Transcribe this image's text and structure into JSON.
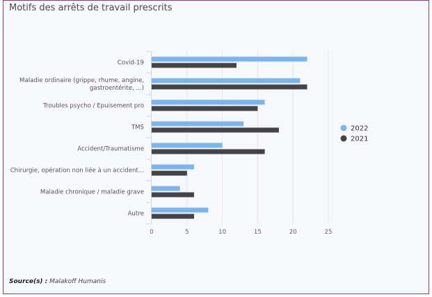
{
  "page": {
    "title": "Motifs des arrêts de travail prescrits",
    "source_label": "Source(s) :",
    "source_value": "Malakoff Humanis"
  },
  "colors": {
    "frame_border": "#8a3b6c",
    "background": "#f7f8fb",
    "series_2022": "#7cb5ec",
    "series_2021": "#434348",
    "grid": "#e6e6e6"
  },
  "chart_data": {
    "type": "bar",
    "orientation": "horizontal",
    "title": "Motifs des arrêts de travail prescrits",
    "xlabel": "",
    "ylabel": "",
    "categories": [
      [
        "Covid-19"
      ],
      [
        "Maladie ordinaire (grippe, rhume, angine,",
        "gastroentérite, ...)"
      ],
      [
        "Troubles psycho / Epuisement pro"
      ],
      [
        "TMS"
      ],
      [
        "Accident/Traumatisme"
      ],
      [
        "Chirurgie, opération non liée à un accident..."
      ],
      [
        "Maladie chronique / maladie grave"
      ],
      [
        "Autre"
      ]
    ],
    "series": [
      {
        "name": "2022",
        "color": "#7cb5ec",
        "values": [
          22,
          21,
          16,
          13,
          10,
          6,
          4,
          8
        ]
      },
      {
        "name": "2021",
        "color": "#434348",
        "values": [
          12,
          22,
          15,
          18,
          16,
          5,
          6,
          6
        ]
      }
    ],
    "xlim": [
      0,
      25
    ],
    "xticks": [
      0,
      5,
      10,
      15,
      20,
      25
    ],
    "grid": true,
    "legend": {
      "position": "right",
      "entries": [
        "2022",
        "2021"
      ]
    }
  }
}
